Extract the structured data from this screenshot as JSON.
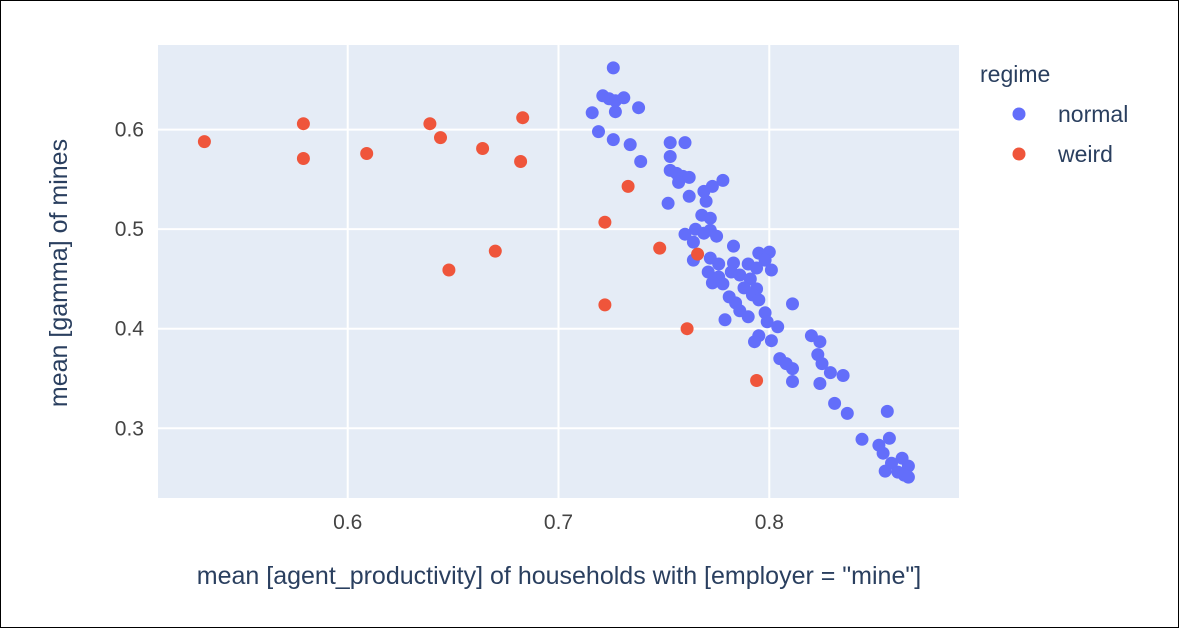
{
  "chart_data": {
    "type": "scatter",
    "xlabel": "mean [agent_productivity] of households with [employer = \"mine\"]",
    "ylabel": "mean [gamma] of mines",
    "xlim": [
      0.51,
      0.89
    ],
    "ylim": [
      0.23,
      0.685
    ],
    "xticks": [
      0.6,
      0.7,
      0.8
    ],
    "yticks": [
      0.3,
      0.4,
      0.5,
      0.6
    ],
    "xtick_labels": [
      "0.6",
      "0.7",
      "0.8"
    ],
    "ytick_labels": [
      "0.3",
      "0.4",
      "0.5",
      "0.6"
    ],
    "grid": true,
    "plot_bgcolor": "#e5ecf6",
    "legend": {
      "title": "regime",
      "placement": "top-right"
    },
    "series": [
      {
        "name": "normal",
        "color": "#636efa",
        "points": [
          [
            0.726,
            0.662
          ],
          [
            0.721,
            0.634
          ],
          [
            0.724,
            0.631
          ],
          [
            0.727,
            0.629
          ],
          [
            0.731,
            0.632
          ],
          [
            0.716,
            0.617
          ],
          [
            0.727,
            0.618
          ],
          [
            0.738,
            0.622
          ],
          [
            0.719,
            0.598
          ],
          [
            0.726,
            0.59
          ],
          [
            0.734,
            0.585
          ],
          [
            0.739,
            0.568
          ],
          [
            0.753,
            0.587
          ],
          [
            0.76,
            0.587
          ],
          [
            0.753,
            0.573
          ],
          [
            0.753,
            0.559
          ],
          [
            0.756,
            0.556
          ],
          [
            0.759,
            0.553
          ],
          [
            0.762,
            0.552
          ],
          [
            0.757,
            0.547
          ],
          [
            0.769,
            0.538
          ],
          [
            0.773,
            0.543
          ],
          [
            0.778,
            0.549
          ],
          [
            0.762,
            0.533
          ],
          [
            0.752,
            0.526
          ],
          [
            0.77,
            0.528
          ],
          [
            0.768,
            0.514
          ],
          [
            0.772,
            0.511
          ],
          [
            0.765,
            0.5
          ],
          [
            0.772,
            0.499
          ],
          [
            0.76,
            0.495
          ],
          [
            0.764,
            0.487
          ],
          [
            0.769,
            0.496
          ],
          [
            0.775,
            0.493
          ],
          [
            0.783,
            0.483
          ],
          [
            0.795,
            0.476
          ],
          [
            0.8,
            0.477
          ],
          [
            0.764,
            0.469
          ],
          [
            0.772,
            0.471
          ],
          [
            0.776,
            0.465
          ],
          [
            0.783,
            0.466
          ],
          [
            0.79,
            0.465
          ],
          [
            0.798,
            0.469
          ],
          [
            0.801,
            0.459
          ],
          [
            0.771,
            0.457
          ],
          [
            0.776,
            0.452
          ],
          [
            0.782,
            0.457
          ],
          [
            0.786,
            0.454
          ],
          [
            0.791,
            0.45
          ],
          [
            0.794,
            0.461
          ],
          [
            0.773,
            0.446
          ],
          [
            0.778,
            0.445
          ],
          [
            0.788,
            0.441
          ],
          [
            0.794,
            0.44
          ],
          [
            0.781,
            0.432
          ],
          [
            0.784,
            0.426
          ],
          [
            0.792,
            0.434
          ],
          [
            0.795,
            0.429
          ],
          [
            0.786,
            0.418
          ],
          [
            0.779,
            0.409
          ],
          [
            0.79,
            0.412
          ],
          [
            0.798,
            0.416
          ],
          [
            0.799,
            0.407
          ],
          [
            0.811,
            0.425
          ],
          [
            0.804,
            0.402
          ],
          [
            0.795,
            0.393
          ],
          [
            0.793,
            0.387
          ],
          [
            0.801,
            0.388
          ],
          [
            0.805,
            0.37
          ],
          [
            0.808,
            0.365
          ],
          [
            0.811,
            0.36
          ],
          [
            0.811,
            0.347
          ],
          [
            0.82,
            0.393
          ],
          [
            0.824,
            0.387
          ],
          [
            0.823,
            0.374
          ],
          [
            0.825,
            0.365
          ],
          [
            0.829,
            0.356
          ],
          [
            0.835,
            0.353
          ],
          [
            0.824,
            0.345
          ],
          [
            0.831,
            0.325
          ],
          [
            0.837,
            0.315
          ],
          [
            0.844,
            0.289
          ],
          [
            0.852,
            0.283
          ],
          [
            0.856,
            0.317
          ],
          [
            0.857,
            0.29
          ],
          [
            0.854,
            0.275
          ],
          [
            0.858,
            0.265
          ],
          [
            0.863,
            0.27
          ],
          [
            0.866,
            0.262
          ],
          [
            0.861,
            0.256
          ],
          [
            0.864,
            0.253
          ],
          [
            0.866,
            0.251
          ],
          [
            0.855,
            0.257
          ]
        ]
      },
      {
        "name": "weird",
        "color": "#ef553b",
        "points": [
          [
            0.532,
            0.588
          ],
          [
            0.579,
            0.606
          ],
          [
            0.579,
            0.571
          ],
          [
            0.609,
            0.576
          ],
          [
            0.639,
            0.606
          ],
          [
            0.644,
            0.592
          ],
          [
            0.664,
            0.581
          ],
          [
            0.683,
            0.612
          ],
          [
            0.682,
            0.568
          ],
          [
            0.648,
            0.459
          ],
          [
            0.67,
            0.478
          ],
          [
            0.722,
            0.507
          ],
          [
            0.722,
            0.424
          ],
          [
            0.733,
            0.543
          ],
          [
            0.748,
            0.481
          ],
          [
            0.766,
            0.475
          ],
          [
            0.761,
            0.4
          ],
          [
            0.794,
            0.348
          ]
        ]
      }
    ]
  }
}
